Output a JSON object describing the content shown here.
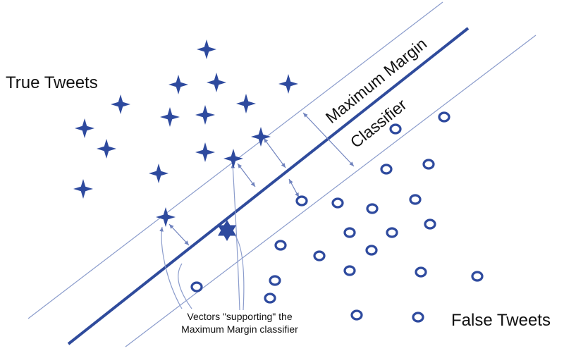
{
  "labels": {
    "true_tweets": "True Tweets",
    "false_tweets": "False Tweets",
    "classifier_line1": "Maximum Margin",
    "classifier_line2": "Classifier",
    "vectors_line1": "Vectors \"supporting\" the",
    "vectors_line2": "Maximum Margin classifier"
  },
  "colors": {
    "marker": "#2e4a9e",
    "main_line": "#2f4b9c",
    "margin_line": "#8b9ccc",
    "arrow": "#6f82bd"
  },
  "icons": {
    "true_point": "four-point-star-icon",
    "support_true_point": "six-point-star-icon",
    "false_point": "ring-icon"
  }
}
